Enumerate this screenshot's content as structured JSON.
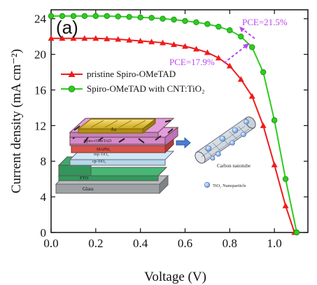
{
  "chart_data": {
    "type": "line",
    "panel_label": "(a)",
    "xlabel": "Voltage (V)",
    "ylabel": "Current density (mA cm⁻²)",
    "xlim": [
      0,
      1.15
    ],
    "ylim": [
      0,
      25
    ],
    "x_ticks": [
      0.0,
      0.2,
      0.4,
      0.6,
      0.8,
      1.0
    ],
    "x_tick_labels": [
      "0.0",
      "0.2",
      "0.4",
      "0.6",
      "0.8",
      "1.0"
    ],
    "y_ticks": [
      0,
      4,
      8,
      12,
      16,
      20,
      24
    ],
    "y_tick_labels": [
      "0",
      "4",
      "8",
      "12",
      "16",
      "20",
      "24"
    ],
    "legend_position": "upper-left",
    "series": [
      {
        "name": "pristine Spiro-OMeTAD",
        "color": "#ee1c1c",
        "marker": "triangle",
        "x": [
          0.0,
          0.05,
          0.1,
          0.15,
          0.2,
          0.25,
          0.3,
          0.35,
          0.4,
          0.45,
          0.5,
          0.55,
          0.6,
          0.65,
          0.7,
          0.75,
          0.8,
          0.85,
          0.9,
          0.95,
          1.0,
          1.05,
          1.09
        ],
        "y": [
          21.8,
          21.8,
          21.8,
          21.8,
          21.8,
          21.75,
          21.7,
          21.6,
          21.5,
          21.4,
          21.3,
          21.1,
          20.9,
          20.6,
          20.2,
          19.6,
          18.7,
          17.2,
          15.3,
          12.0,
          7.6,
          3.0,
          0.0
        ]
      },
      {
        "name": "Spiro-OMeTAD with CNT:TiO₂",
        "color": "#2ecc1e",
        "marker": "circle",
        "x": [
          0.0,
          0.05,
          0.1,
          0.15,
          0.2,
          0.25,
          0.3,
          0.35,
          0.4,
          0.45,
          0.5,
          0.55,
          0.6,
          0.65,
          0.7,
          0.75,
          0.8,
          0.85,
          0.9,
          0.95,
          1.0,
          1.05,
          1.1
        ],
        "y": [
          24.3,
          24.3,
          24.3,
          24.3,
          24.3,
          24.3,
          24.25,
          24.2,
          24.15,
          24.1,
          24.0,
          23.9,
          23.75,
          23.6,
          23.4,
          23.1,
          22.7,
          22.0,
          20.8,
          18.0,
          12.6,
          6.0,
          0.0
        ]
      }
    ],
    "annotations": [
      {
        "text": "PCE=21.5%",
        "color": "#b847ee"
      },
      {
        "text": "PCE=17.9%",
        "color": "#b847ee"
      }
    ],
    "inset": {
      "layers": [
        "Au",
        "Spiro-OMeTAD",
        "MAPbI₃",
        "mp-TiO₂",
        "cp-TiO₂",
        "FTO",
        "Glass"
      ],
      "nanotube_label": "Carbon nanotube",
      "particle_label": "TiO₂ Nanoparticle"
    }
  }
}
